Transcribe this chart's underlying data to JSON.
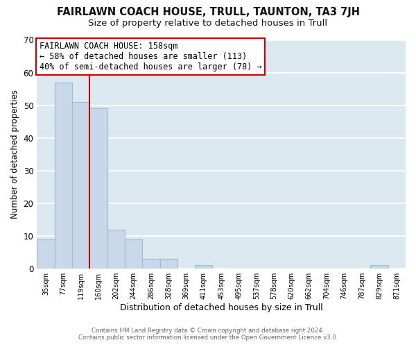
{
  "title": "FAIRLAWN COACH HOUSE, TRULL, TAUNTON, TA3 7JH",
  "subtitle": "Size of property relative to detached houses in Trull",
  "xlabel": "Distribution of detached houses by size in Trull",
  "ylabel": "Number of detached properties",
  "bin_labels": [
    "35sqm",
    "77sqm",
    "119sqm",
    "160sqm",
    "202sqm",
    "244sqm",
    "286sqm",
    "328sqm",
    "369sqm",
    "411sqm",
    "453sqm",
    "495sqm",
    "537sqm",
    "578sqm",
    "620sqm",
    "662sqm",
    "704sqm",
    "746sqm",
    "787sqm",
    "829sqm",
    "871sqm"
  ],
  "bar_heights": [
    9,
    57,
    51,
    49,
    12,
    9,
    3,
    3,
    0,
    1,
    0,
    0,
    0,
    0,
    0,
    0,
    0,
    0,
    0,
    1,
    0
  ],
  "bar_color": "#c8d8ea",
  "bar_edge_color": "#a0bcd0",
  "property_line_x": 3,
  "property_line_color": "#cc0000",
  "ylim": [
    0,
    70
  ],
  "yticks": [
    0,
    10,
    20,
    30,
    40,
    50,
    60,
    70
  ],
  "annotation_box_text": "FAIRLAWN COACH HOUSE: 158sqm\n← 58% of detached houses are smaller (113)\n40% of semi-detached houses are larger (78) →",
  "annotation_box_color": "#cc0000",
  "footer_line1": "Contains HM Land Registry data © Crown copyright and database right 2024.",
  "footer_line2": "Contains public sector information licensed under the Open Government Licence v3.0.",
  "background_color": "#ffffff",
  "plot_bg_color": "#dce8f0",
  "grid_color": "#ffffff",
  "title_fontsize": 10.5,
  "subtitle_fontsize": 9.5,
  "annotation_fontsize": 8.5
}
